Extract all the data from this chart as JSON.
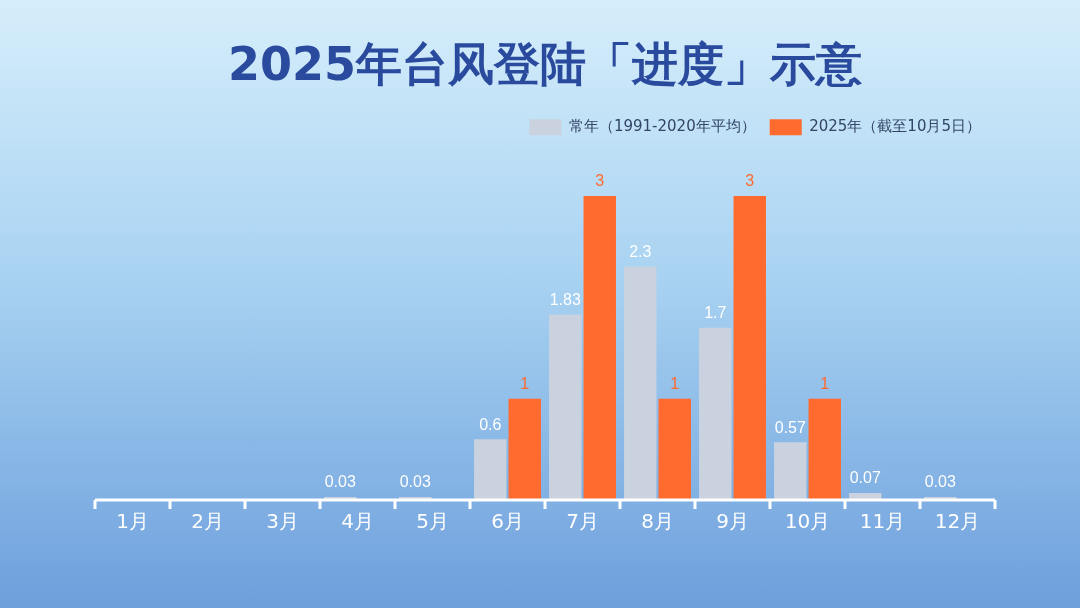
{
  "chart_data": {
    "type": "bar",
    "title": "2025年台风登陆「进度」示意",
    "categories": [
      "1月",
      "2月",
      "3月",
      "4月",
      "5月",
      "6月",
      "7月",
      "8月",
      "9月",
      "10月",
      "11月",
      "12月"
    ],
    "series": [
      {
        "name": "常年（1991-2020年平均）",
        "color": "#c9d2de",
        "values": [
          null,
          null,
          null,
          0.03,
          0.03,
          0.6,
          1.83,
          2.3,
          1.7,
          0.57,
          0.07,
          0.03
        ]
      },
      {
        "name": "2025年（截至10月5日）",
        "color": "#ff6a2e",
        "values": [
          null,
          null,
          null,
          null,
          null,
          1,
          3,
          1,
          3,
          1,
          null,
          null
        ]
      }
    ],
    "data_labels": true,
    "legend": "top right"
  }
}
